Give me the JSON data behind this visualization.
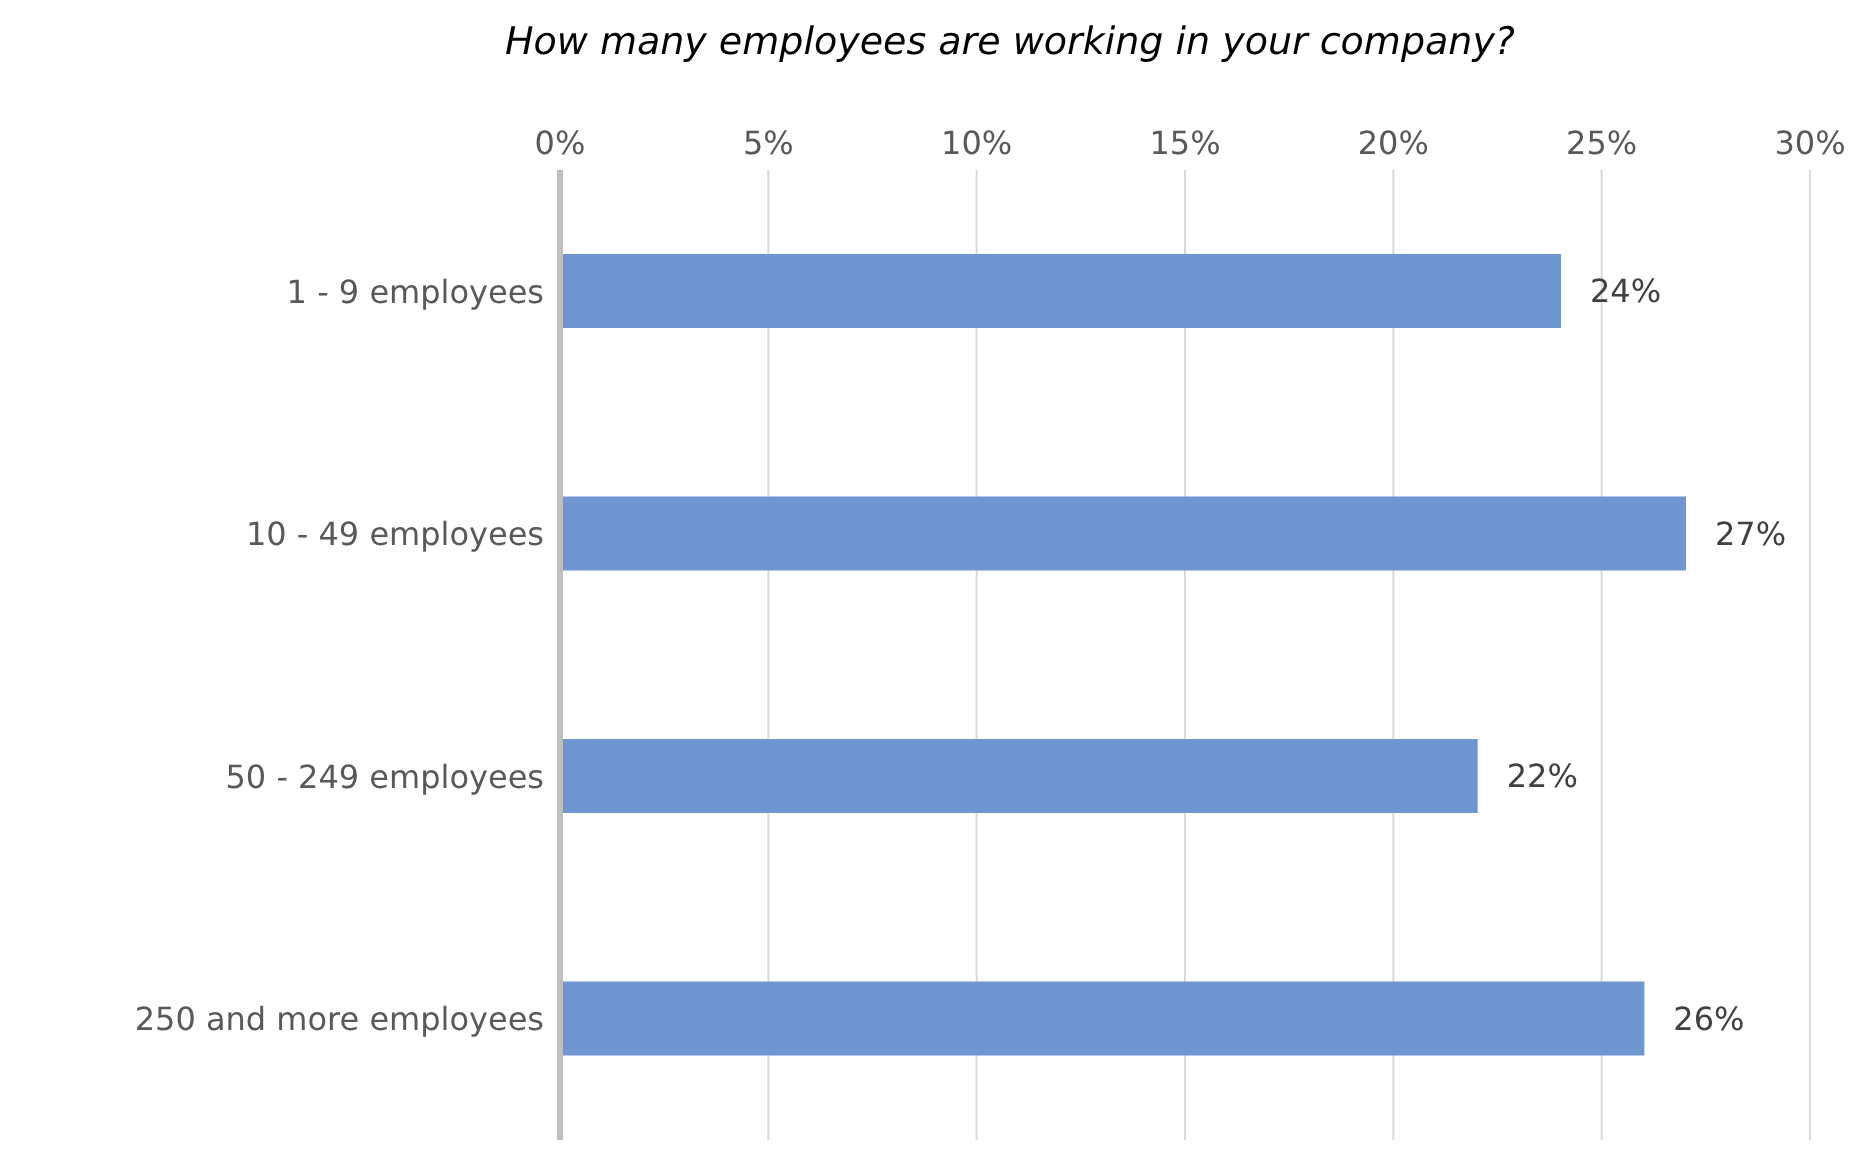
{
  "chart_data": {
    "type": "bar",
    "orientation": "horizontal",
    "title": "How many employees are working in your company?",
    "categories": [
      "1 - 9 employees",
      "10 - 49 employees",
      "50 - 249 employees",
      "250 and more employees"
    ],
    "values": [
      24,
      27,
      22,
      26
    ],
    "color": "#6f96d1",
    "value_labels": [
      "24%",
      "27%",
      "22%",
      "26%"
    ],
    "xlim": [
      0,
      30
    ],
    "xticks": [
      {
        "value": 0,
        "label": "0%"
      },
      {
        "value": 5,
        "label": "5%"
      },
      {
        "value": 10,
        "label": "10%"
      },
      {
        "value": 15,
        "label": "15%"
      },
      {
        "value": 20,
        "label": "20%"
      },
      {
        "value": 25,
        "label": "25%"
      },
      {
        "value": 30,
        "label": "30%"
      }
    ],
    "grid": "x"
  }
}
